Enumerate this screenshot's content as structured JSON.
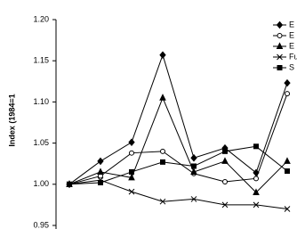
{
  "chart_data": {
    "type": "line",
    "ylabel": "Index (1984=1",
    "ylim": [
      0.95,
      1.2
    ],
    "yticks": [
      {
        "value": 0.95,
        "label": "0.95"
      },
      {
        "value": 1.0,
        "label": "1.00"
      },
      {
        "value": 1.05,
        "label": "1.05"
      },
      {
        "value": 1.1,
        "label": "1.10"
      },
      {
        "value": 1.15,
        "label": "1.15"
      },
      {
        "value": 1.2,
        "label": "1.20"
      }
    ],
    "color": "#000000",
    "series": [
      {
        "name": "E",
        "marker": "diamond",
        "values": [
          1.0,
          1.028,
          1.051,
          1.157,
          1.032,
          1.044,
          1.014,
          1.123
        ]
      },
      {
        "name": "E",
        "marker": "circle",
        "values": [
          1.0,
          1.01,
          1.038,
          1.04,
          1.013,
          1.003,
          1.007,
          1.11
        ]
      },
      {
        "name": "E",
        "marker": "triangle",
        "values": [
          1.0,
          1.015,
          1.008,
          1.105,
          1.015,
          1.028,
          0.99,
          1.028
        ]
      },
      {
        "name": "Fu",
        "marker": "cross",
        "values": [
          1.0,
          1.005,
          0.991,
          0.979,
          0.982,
          0.975,
          0.975,
          0.97
        ]
      },
      {
        "name": "S",
        "marker": "square",
        "values": [
          1.0,
          1.002,
          1.015,
          1.027,
          1.022,
          1.04,
          1.046,
          1.016
        ]
      }
    ]
  }
}
